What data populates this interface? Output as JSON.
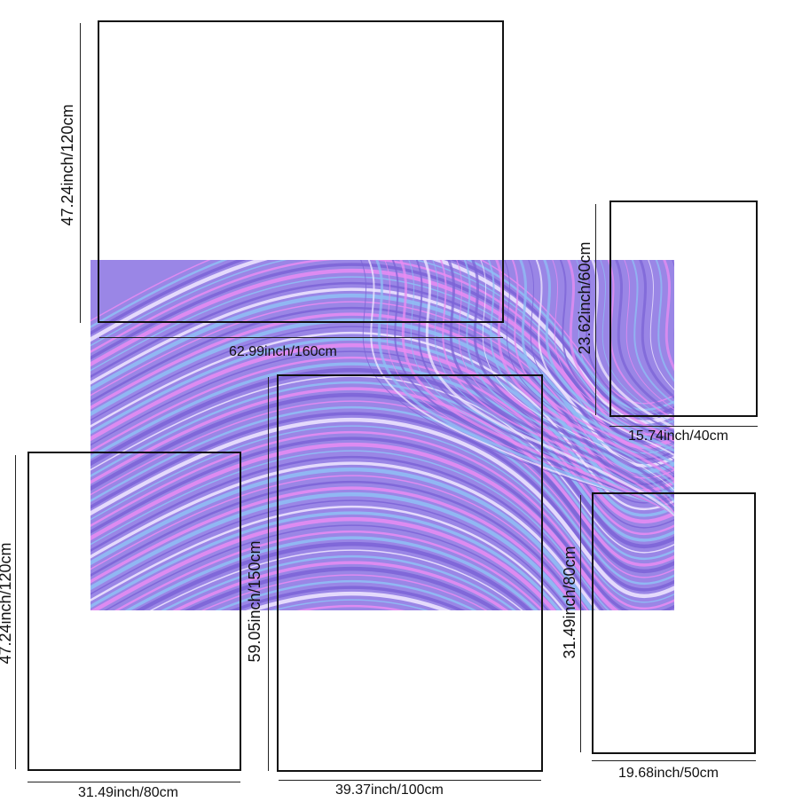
{
  "colors": {
    "art_base": "#9a86e6",
    "stripe_pink": "#e98cf2",
    "stripe_blue": "#8fbff4",
    "stripe_violet": "#7b63d6",
    "stripe_white": "#f1e9ff",
    "frame": "#111111"
  },
  "frames": {
    "top_large": {
      "width_label": "62.99inch/160cm",
      "height_label": "47.24inch/120cm"
    },
    "top_right_small": {
      "width_label": "15.74inch/40cm",
      "height_label": "23.62inch/60cm"
    },
    "bottom_left": {
      "width_label": "31.49inch/80cm",
      "height_label": "47.24inch/120cm"
    },
    "bottom_center": {
      "width_label": "39.37inch/100cm",
      "height_label": "59.05inch/150cm"
    },
    "bottom_right": {
      "width_label": "19.68inch/50cm",
      "height_label": "31.49inch/80cm"
    }
  }
}
